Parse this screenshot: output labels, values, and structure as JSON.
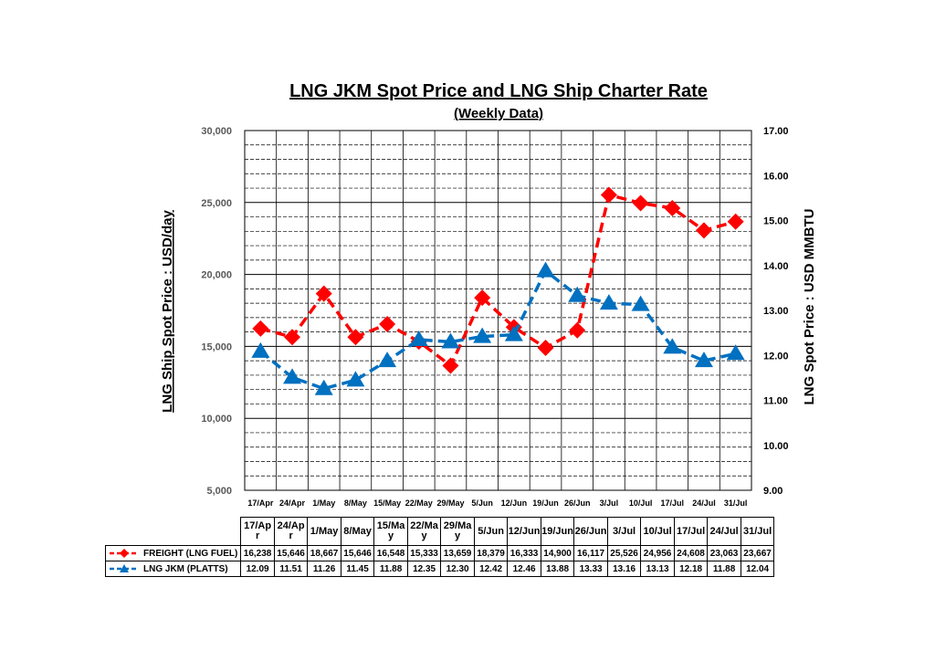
{
  "colors": {
    "freight": "#ff0000",
    "jkm": "#0070c0",
    "grid": "#000000"
  },
  "chart_data": {
    "type": "line",
    "title": "LNG JKM Spot Price and LNG Ship Charter Rate",
    "subtitle": "(Weekly Data)",
    "ylabel": "LNG Ship Spot Price : USD/day",
    "y2label": "LNG Spot Price : USD MMBTU",
    "ylim": [
      5000,
      30000
    ],
    "y2lim": [
      9.0,
      17.0
    ],
    "yticks": [
      "30,000",
      "25,000",
      "20,000",
      "15,000",
      "10,000",
      "5,000"
    ],
    "y2ticks": [
      "17.00",
      "16.00",
      "15.00",
      "14.00",
      "13.00",
      "12.00",
      "11.00",
      "10.00",
      "9.00"
    ],
    "categories": [
      "17/Apr",
      "24/Apr",
      "1/May",
      "8/May",
      "15/May",
      "22/May",
      "29/May",
      "5/Jun",
      "12/Jun",
      "19/Jun",
      "26/Jun",
      "3/Jul",
      "10/Jul",
      "17/Jul",
      "24/Jul",
      "31/Jul"
    ],
    "table_headers": [
      [
        "17/Ap",
        "r"
      ],
      [
        "24/Ap",
        "r"
      ],
      [
        "1/May"
      ],
      [
        "8/May"
      ],
      [
        "15/Ma",
        "y"
      ],
      [
        "22/Ma",
        "y"
      ],
      [
        "29/Ma",
        "y"
      ],
      [
        "5/Jun"
      ],
      [
        "12/Jun"
      ],
      [
        "19/Jun"
      ],
      [
        "26/Jun"
      ],
      [
        "3/Jul"
      ],
      [
        "10/Jul"
      ],
      [
        "17/Jul"
      ],
      [
        "24/Jul"
      ],
      [
        "31/Jul"
      ]
    ],
    "series": [
      {
        "name": "FREIGHT (LNG FUEL)",
        "axis": "left",
        "marker": "diamond",
        "values": [
          16238,
          15646,
          18667,
          15646,
          16548,
          15333,
          13659,
          18379,
          16333,
          14900,
          16117,
          25526,
          24956,
          24608,
          23063,
          23667
        ],
        "labels": [
          "16,238",
          "15,646",
          "18,667",
          "15,646",
          "16,548",
          "15,333",
          "13,659",
          "18,379",
          "16,333",
          "14,900",
          "16,117",
          "25,526",
          "24,956",
          "24,608",
          "23,063",
          "23,667"
        ]
      },
      {
        "name": "LNG JKM (PLATTS)",
        "axis": "right",
        "marker": "triangle",
        "values": [
          12.09,
          11.51,
          11.26,
          11.45,
          11.88,
          12.35,
          12.3,
          12.42,
          12.46,
          13.88,
          13.33,
          13.16,
          13.13,
          12.18,
          11.88,
          12.04
        ],
        "labels": [
          "12.09",
          "11.51",
          "11.26",
          "11.45",
          "11.88",
          "12.35",
          "12.30",
          "12.42",
          "12.46",
          "13.88",
          "13.33",
          "13.16",
          "13.13",
          "12.18",
          "11.88",
          "12.04"
        ]
      }
    ]
  }
}
